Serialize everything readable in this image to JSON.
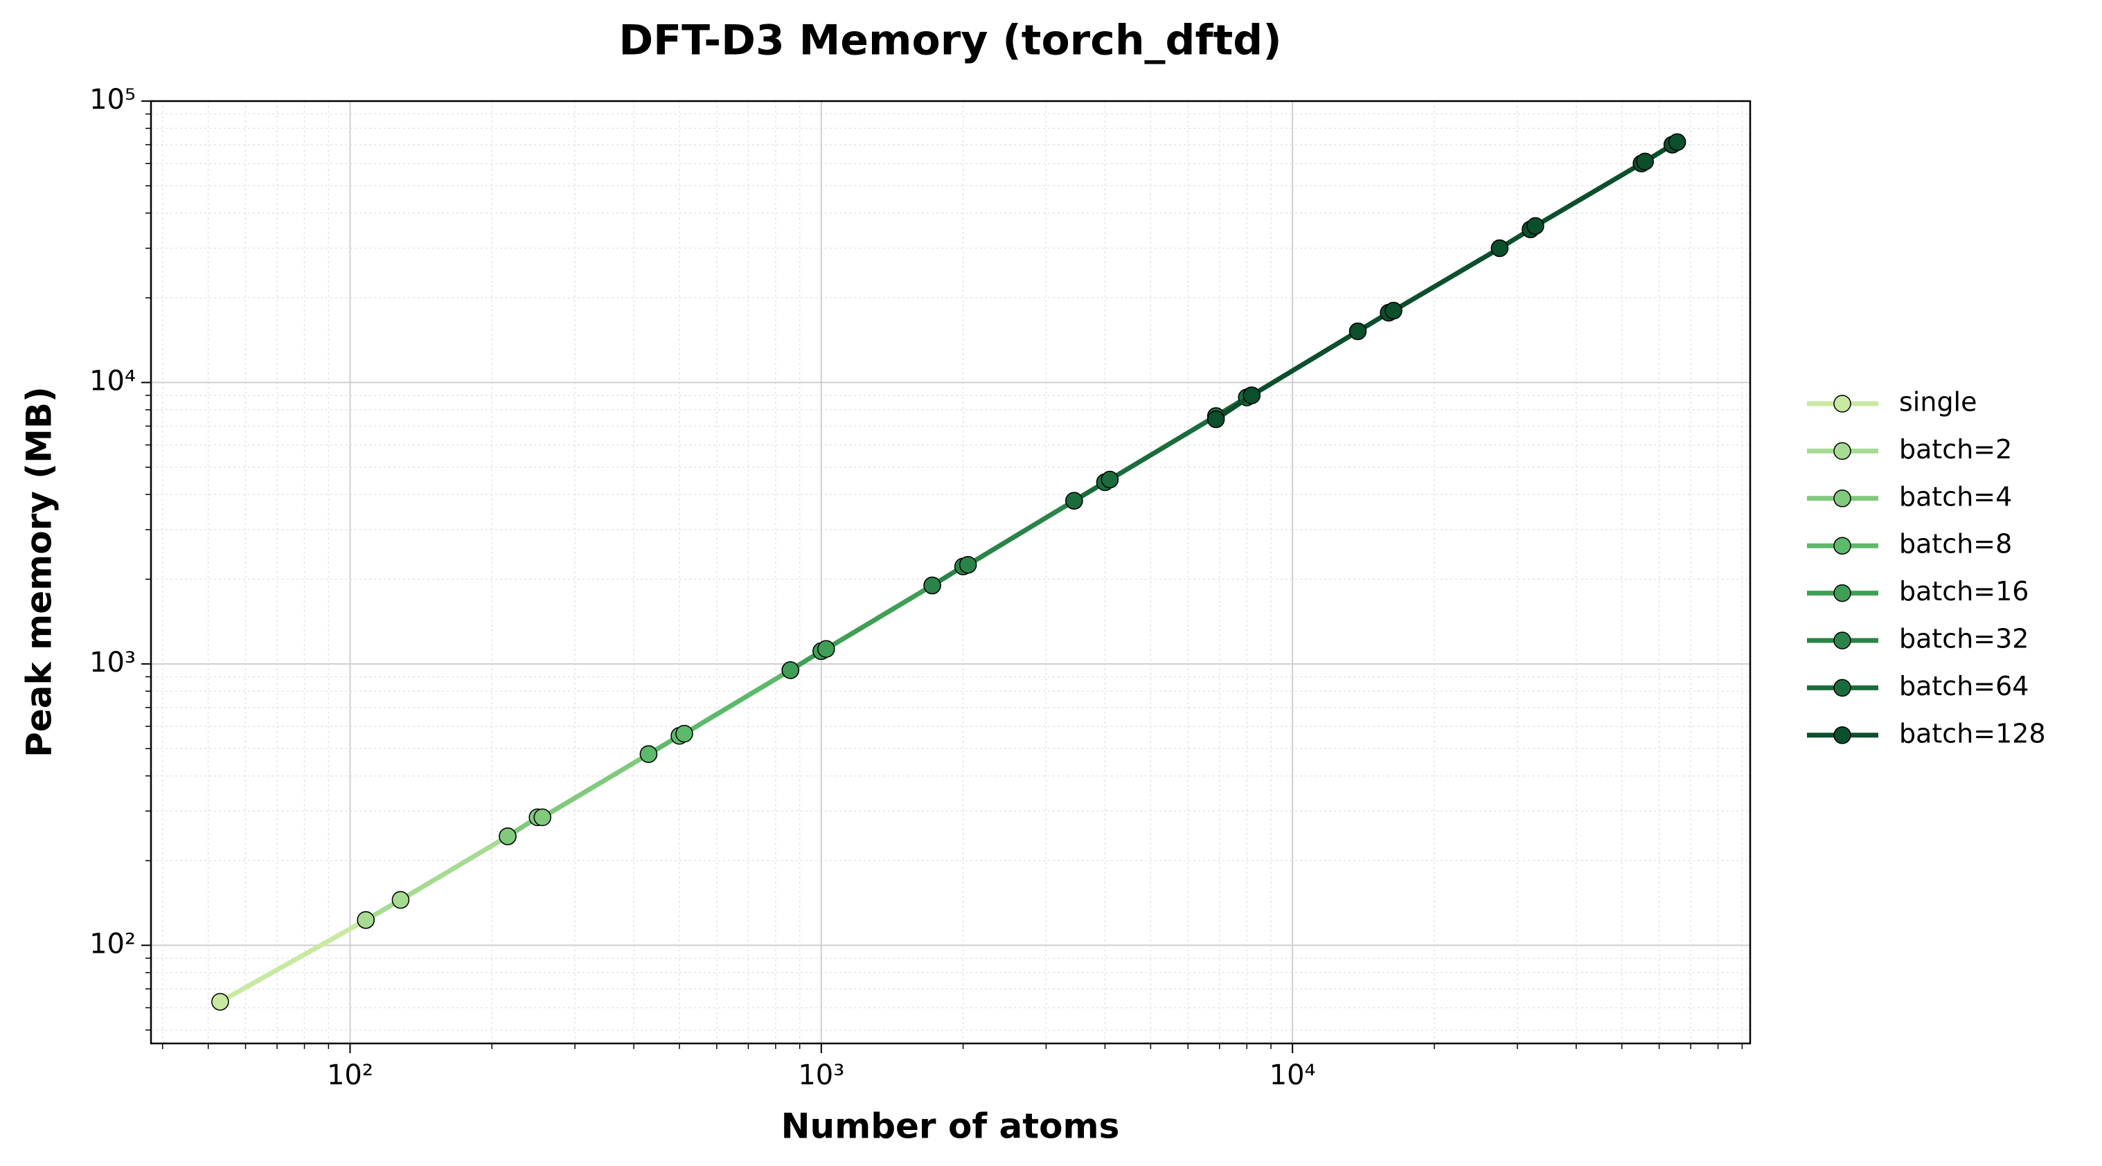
{
  "chart_data": {
    "type": "line",
    "title": "DFT-D3 Memory (torch_dftd)",
    "x_label": "Number of atoms",
    "y_label": "Peak memory (MB)",
    "xscale": "log",
    "yscale": "log",
    "xlim": [
      37.8,
      93600
    ],
    "ylim": [
      44.8,
      100000
    ],
    "xticks": [
      {
        "value": 100,
        "label": "10²"
      },
      {
        "value": 1000,
        "label": "10³"
      },
      {
        "value": 10000,
        "label": "10⁴"
      }
    ],
    "yticks": [
      {
        "value": 100,
        "label": "10²"
      },
      {
        "value": 1000,
        "label": "10³"
      },
      {
        "value": 10000,
        "label": "10⁴"
      },
      {
        "value": 100000,
        "label": "10⁵"
      }
    ],
    "grid": true,
    "legend": "outside-right",
    "series": [
      {
        "name": "single",
        "color": "#c7e9a1",
        "x": [
          53,
          108
        ],
        "values": [
          63,
          123
        ]
      },
      {
        "name": "batch=2",
        "color": "#a5db92",
        "x": [
          108,
          128,
          216
        ],
        "values": [
          123,
          145,
          244
        ]
      },
      {
        "name": "batch=4",
        "color": "#81c97d",
        "x": [
          216,
          250,
          256,
          430
        ],
        "values": [
          244,
          285,
          285,
          478
        ]
      },
      {
        "name": "batch=8",
        "color": "#5db96b",
        "x": [
          430,
          500,
          512,
          860
        ],
        "values": [
          478,
          555,
          565,
          950
        ]
      },
      {
        "name": "batch=16",
        "color": "#3f9f56",
        "x": [
          860,
          1000,
          1024,
          1720
        ],
        "values": [
          950,
          1110,
          1130,
          1900
        ]
      },
      {
        "name": "batch=32",
        "color": "#2a8449",
        "x": [
          1720,
          2000,
          2048,
          3440
        ],
        "values": [
          1900,
          2220,
          2250,
          3800
        ]
      },
      {
        "name": "batch=64",
        "color": "#1b6c3c",
        "x": [
          3440,
          4000,
          4096,
          6880,
          8000,
          8192
        ],
        "values": [
          3800,
          4420,
          4520,
          7600,
          8850,
          9000
        ]
      },
      {
        "name": "batch=128",
        "color": "#0c4f2c",
        "x": [
          6880,
          8192,
          13760,
          16000,
          16384,
          27520,
          32000,
          32768,
          55040,
          56000,
          64000,
          65536
        ],
        "values": [
          7400,
          9000,
          15200,
          17700,
          18000,
          30000,
          35000,
          36000,
          60000,
          61000,
          70000,
          71500
        ]
      }
    ]
  }
}
